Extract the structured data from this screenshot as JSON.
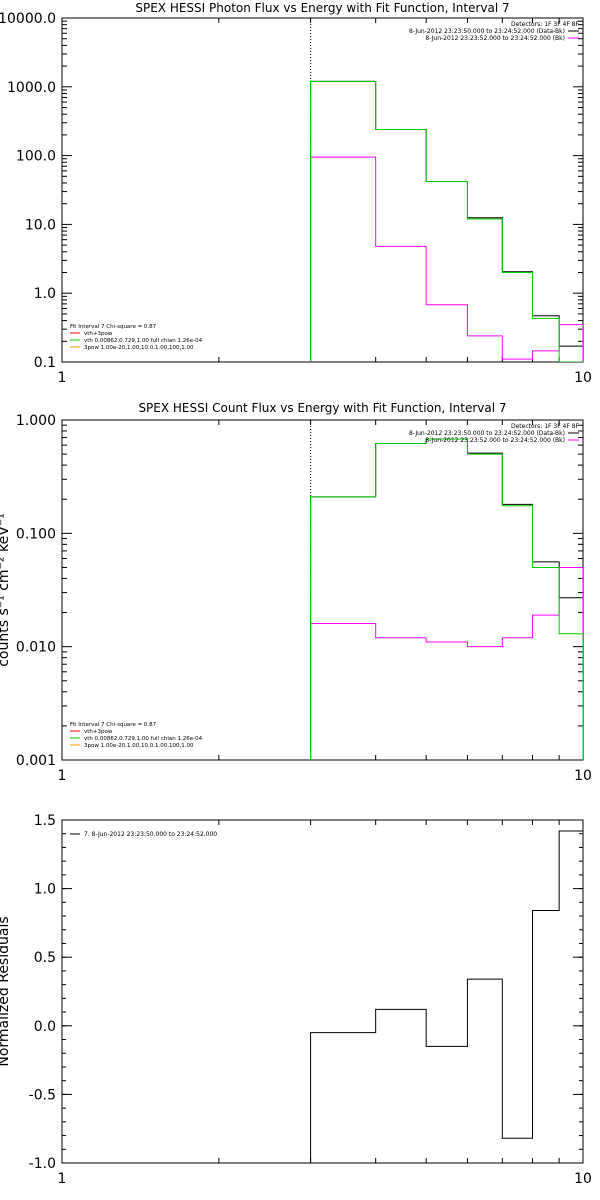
{
  "chart_data": [
    {
      "type": "line",
      "title": "SPEX HESSI Photon Flux vs Energy with Fit Function, Interval 7",
      "xlabel": "",
      "ylabel": "",
      "xscale": "log",
      "yscale": "log",
      "xlim": [
        1,
        10
      ],
      "ylim": [
        0.1,
        10000
      ],
      "xticks": [
        {
          "value": 1,
          "label": "1"
        },
        {
          "value": 10,
          "label": "10"
        }
      ],
      "yticks": [
        {
          "value": 0.1,
          "label": "0.1"
        },
        {
          "value": 1,
          "label": "1.0"
        },
        {
          "value": 10,
          "label": "10.0"
        },
        {
          "value": 100,
          "label": "100.0"
        },
        {
          "value": 1000,
          "label": "1000.0"
        },
        {
          "value": 10000,
          "label": "10000.0"
        }
      ],
      "vline": 3,
      "edges": [
        3,
        4,
        5,
        6,
        7,
        8,
        9,
        10
      ],
      "series": [
        {
          "color": "#000000",
          "values": [
            1200,
            240,
            42,
            12.5,
            2.05,
            0.47,
            0.17
          ]
        },
        {
          "color": "#ff00ff",
          "values": [
            95,
            4.8,
            0.68,
            0.24,
            0.11,
            0.145,
            0.35
          ]
        },
        {
          "color": "#00cc00",
          "values": [
            1200,
            240,
            42,
            12,
            2.0,
            0.43,
            0.1
          ]
        }
      ],
      "header": [
        {
          "text": "Detectors: 1F 3F 4F 8F",
          "color": "#000000",
          "swatch": false
        },
        {
          "text": "8-Jun-2012 23:23:50.000 to 23:24:52.000 (Data-Bk)",
          "color": "#000000",
          "swatch": true
        },
        {
          "text": "8-Jun-2012 23:23:52.000 to 23:24:52.000 (Bk)",
          "color": "#ff00ff",
          "swatch": true
        }
      ],
      "fit_legend": [
        {
          "text": "Fit Interval 7   Chi-square = 0.87",
          "color": "#000000",
          "swatch": false
        },
        {
          "text": "vth+3pow",
          "color": "#ff0000",
          "swatch": true
        },
        {
          "text": "vth 0.00862,0.729,1.00  full chian 1.26e-04",
          "color": "#00cc00",
          "swatch": true
        },
        {
          "text": "3pow 1.00e-20,1.00,10.0,1.00,100,1.00",
          "color": "#ff9900",
          "swatch": true
        }
      ]
    },
    {
      "type": "line",
      "title": "SPEX HESSI Count Flux vs Energy with Fit Function, Interval 7",
      "xlabel": "",
      "ylabel": "counts s⁻¹ cm⁻² keV⁻¹",
      "xscale": "log",
      "yscale": "log",
      "xlim": [
        1,
        10
      ],
      "ylim": [
        0.001,
        1
      ],
      "xticks": [
        {
          "value": 1,
          "label": "1"
        },
        {
          "value": 10,
          "label": "10"
        }
      ],
      "yticks": [
        {
          "value": 0.001,
          "label": "0.001"
        },
        {
          "value": 0.01,
          "label": "0.010"
        },
        {
          "value": 0.1,
          "label": "0.100"
        },
        {
          "value": 1,
          "label": "1.000"
        }
      ],
      "vline": 3,
      "edges": [
        3,
        4,
        5,
        6,
        7,
        8,
        9,
        10
      ],
      "series": [
        {
          "color": "#000000",
          "values": [
            0.21,
            0.62,
            0.68,
            0.51,
            0.18,
            0.056,
            0.027
          ]
        },
        {
          "color": "#ff00ff",
          "values": [
            0.016,
            0.012,
            0.011,
            0.01,
            0.012,
            0.019,
            0.05
          ]
        },
        {
          "color": "#00cc00",
          "values": [
            0.21,
            0.62,
            0.68,
            0.5,
            0.175,
            0.05,
            0.013
          ]
        }
      ],
      "header": [
        {
          "text": "Detectors: 1F 3F 4F 8F",
          "color": "#000000",
          "swatch": false
        },
        {
          "text": "8-Jun-2012 23:23:50.000 to 23:24:52.000 (Data-Bk)",
          "color": "#000000",
          "swatch": true
        },
        {
          "text": "8-Jun-2012 23:23:52.000 to 23:24:52.000 (Bk)",
          "color": "#ff00ff",
          "swatch": true
        }
      ],
      "fit_legend": [
        {
          "text": "Fit Interval 7   Chi-square = 0.87",
          "color": "#000000",
          "swatch": false
        },
        {
          "text": "vth+3pow",
          "color": "#ff0000",
          "swatch": true
        },
        {
          "text": "vth 0.00862,0.729,1.00  full chian 1.26e-04",
          "color": "#00cc00",
          "swatch": true
        },
        {
          "text": "3pow 1.00e-20,1.00,10.0,1.00,100,1.00",
          "color": "#ff9900",
          "swatch": true
        }
      ]
    },
    {
      "type": "line",
      "title": "",
      "xlabel": "",
      "ylabel": "Normalized Residuals",
      "xscale": "log",
      "yscale": "linear",
      "xlim": [
        1,
        10
      ],
      "ylim": [
        -1,
        1.5
      ],
      "xticks": [
        {
          "value": 1,
          "label": "1"
        },
        {
          "value": 10,
          "label": "10"
        }
      ],
      "yticks": [
        {
          "value": -1,
          "label": "-1.0"
        },
        {
          "value": -0.5,
          "label": "-0.5"
        },
        {
          "value": 0,
          "label": "0.0"
        },
        {
          "value": 0.5,
          "label": "0.5"
        },
        {
          "value": 1,
          "label": "1.0"
        },
        {
          "value": 1.5,
          "label": "1.5"
        }
      ],
      "edges": [
        3,
        4,
        5,
        6,
        7,
        8,
        9,
        10
      ],
      "series": [
        {
          "color": "#000000",
          "values": [
            -0.05,
            0.12,
            -0.15,
            0.34,
            -0.82,
            0.84,
            1.42
          ]
        }
      ],
      "fit_legend": [
        {
          "text": "7.  8-Jun-2012 23:23:50.000 to 23:24:52.000",
          "color": "#000000",
          "swatch": true
        }
      ]
    }
  ]
}
